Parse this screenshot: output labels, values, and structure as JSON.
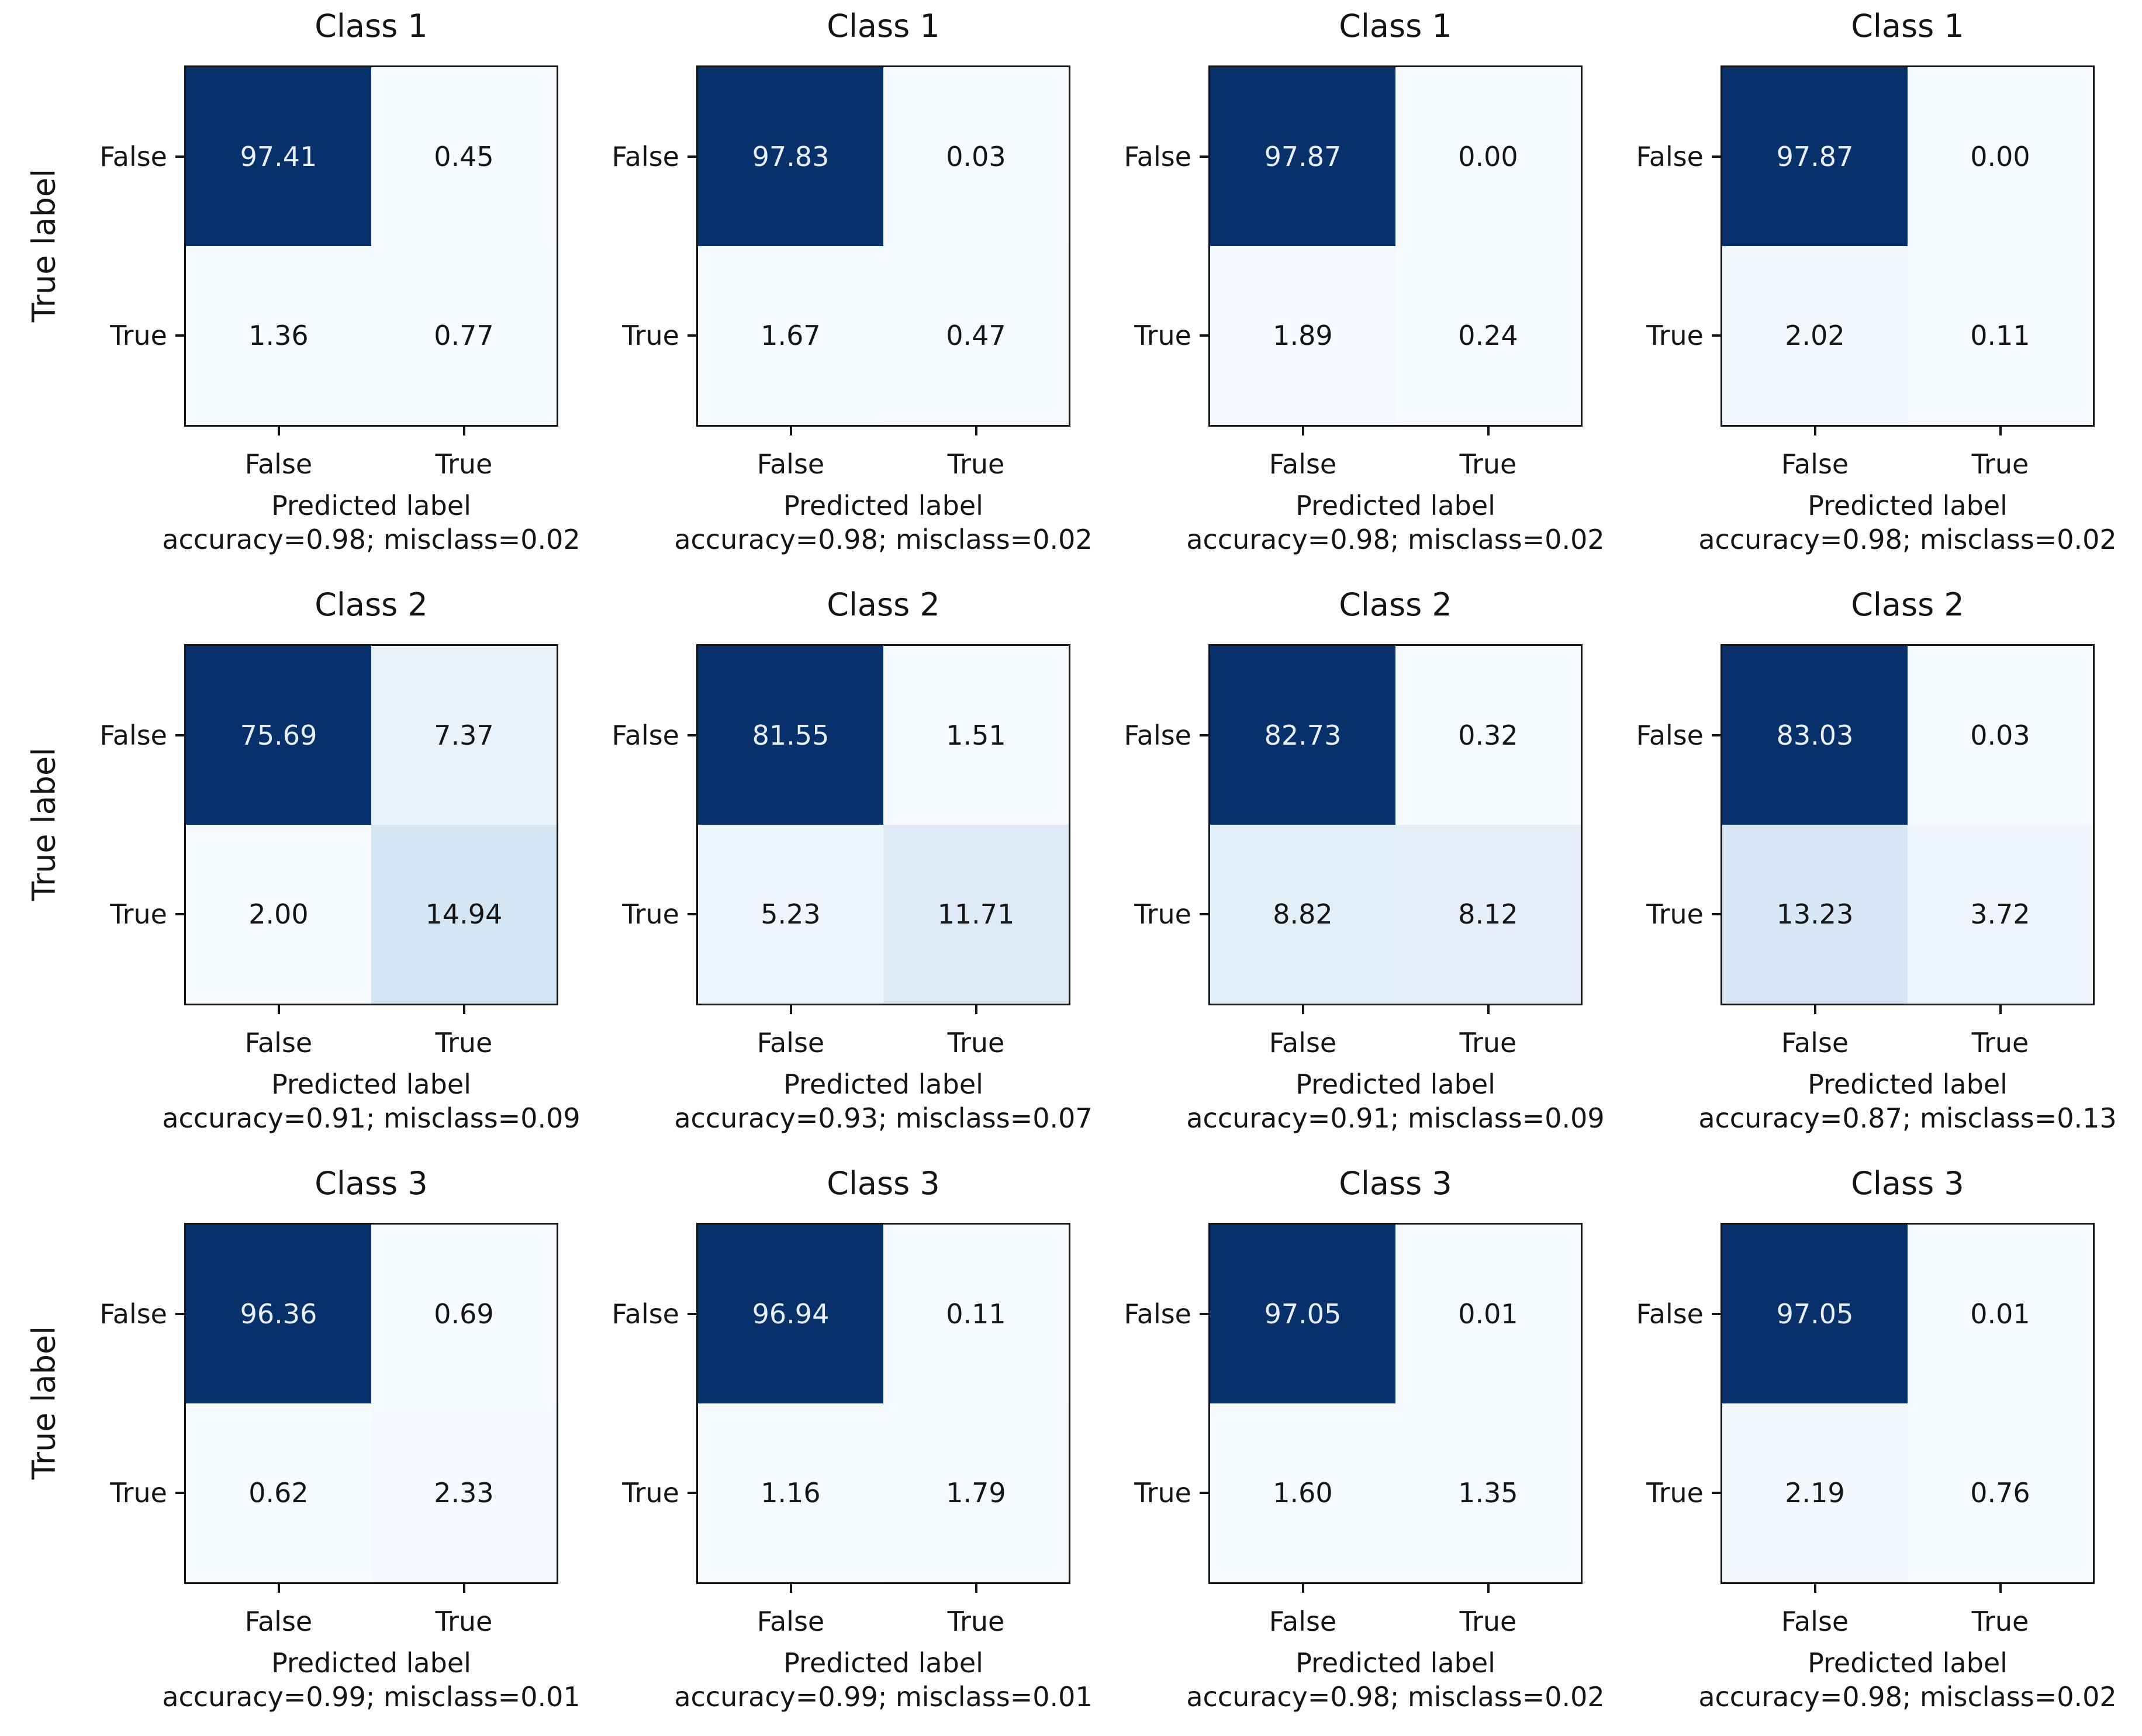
{
  "figure": {
    "xlabel": "Predicted label",
    "ylabel": "True label",
    "background": "#ffffff",
    "text_color": "#151515",
    "cell_text_light": "#e9eff8",
    "colormap": {
      "name": "Blues",
      "low": "#f7fbff",
      "high": "#08306b"
    },
    "grid_rows": 3,
    "grid_cols": 4
  },
  "chart_data": [
    {
      "type": "heatmap",
      "title": "Class 1",
      "x_categories": [
        "False",
        "True"
      ],
      "y_categories": [
        "False",
        "True"
      ],
      "values": [
        [
          97.41,
          0.45
        ],
        [
          1.36,
          0.77
        ]
      ],
      "labels": [
        [
          "97.41",
          "0.45"
        ],
        [
          "1.36",
          "0.77"
        ]
      ],
      "accuracy": 0.98,
      "misclass": 0.02,
      "footer": "accuracy=0.98; misclass=0.02"
    },
    {
      "type": "heatmap",
      "title": "Class 1",
      "x_categories": [
        "False",
        "True"
      ],
      "y_categories": [
        "False",
        "True"
      ],
      "values": [
        [
          97.83,
          0.03
        ],
        [
          1.67,
          0.47
        ]
      ],
      "labels": [
        [
          "97.83",
          "0.03"
        ],
        [
          "1.67",
          "0.47"
        ]
      ],
      "accuracy": 0.98,
      "misclass": 0.02,
      "footer": "accuracy=0.98; misclass=0.02"
    },
    {
      "type": "heatmap",
      "title": "Class 1",
      "x_categories": [
        "False",
        "True"
      ],
      "y_categories": [
        "False",
        "True"
      ],
      "values": [
        [
          97.87,
          0.0
        ],
        [
          1.89,
          0.24
        ]
      ],
      "labels": [
        [
          "97.87",
          "0.00"
        ],
        [
          "1.89",
          "0.24"
        ]
      ],
      "accuracy": 0.98,
      "misclass": 0.02,
      "footer": "accuracy=0.98; misclass=0.02"
    },
    {
      "type": "heatmap",
      "title": "Class 1",
      "x_categories": [
        "False",
        "True"
      ],
      "y_categories": [
        "False",
        "True"
      ],
      "values": [
        [
          97.87,
          0.0
        ],
        [
          2.02,
          0.11
        ]
      ],
      "labels": [
        [
          "97.87",
          "0.00"
        ],
        [
          "2.02",
          "0.11"
        ]
      ],
      "accuracy": 0.98,
      "misclass": 0.02,
      "footer": "accuracy=0.98; misclass=0.02"
    },
    {
      "type": "heatmap",
      "title": "Class 2",
      "x_categories": [
        "False",
        "True"
      ],
      "y_categories": [
        "False",
        "True"
      ],
      "values": [
        [
          75.69,
          7.37
        ],
        [
          2.0,
          14.94
        ]
      ],
      "labels": [
        [
          "75.69",
          "7.37"
        ],
        [
          "2.00",
          "14.94"
        ]
      ],
      "accuracy": 0.91,
      "misclass": 0.09,
      "footer": "accuracy=0.91; misclass=0.09"
    },
    {
      "type": "heatmap",
      "title": "Class 2",
      "x_categories": [
        "False",
        "True"
      ],
      "y_categories": [
        "False",
        "True"
      ],
      "values": [
        [
          81.55,
          1.51
        ],
        [
          5.23,
          11.71
        ]
      ],
      "labels": [
        [
          "81.55",
          "1.51"
        ],
        [
          "5.23",
          "11.71"
        ]
      ],
      "accuracy": 0.93,
      "misclass": 0.07,
      "footer": "accuracy=0.93; misclass=0.07"
    },
    {
      "type": "heatmap",
      "title": "Class 2",
      "x_categories": [
        "False",
        "True"
      ],
      "y_categories": [
        "False",
        "True"
      ],
      "values": [
        [
          82.73,
          0.32
        ],
        [
          8.82,
          8.12
        ]
      ],
      "labels": [
        [
          "82.73",
          "0.32"
        ],
        [
          "8.82",
          "8.12"
        ]
      ],
      "accuracy": 0.91,
      "misclass": 0.09,
      "footer": "accuracy=0.91; misclass=0.09"
    },
    {
      "type": "heatmap",
      "title": "Class 2",
      "x_categories": [
        "False",
        "True"
      ],
      "y_categories": [
        "False",
        "True"
      ],
      "values": [
        [
          83.03,
          0.03
        ],
        [
          13.23,
          3.72
        ]
      ],
      "labels": [
        [
          "83.03",
          "0.03"
        ],
        [
          "13.23",
          "3.72"
        ]
      ],
      "accuracy": 0.87,
      "misclass": 0.13,
      "footer": "accuracy=0.87; misclass=0.13"
    },
    {
      "type": "heatmap",
      "title": "Class 3",
      "x_categories": [
        "False",
        "True"
      ],
      "y_categories": [
        "False",
        "True"
      ],
      "values": [
        [
          96.36,
          0.69
        ],
        [
          0.62,
          2.33
        ]
      ],
      "labels": [
        [
          "96.36",
          "0.69"
        ],
        [
          "0.62",
          "2.33"
        ]
      ],
      "accuracy": 0.99,
      "misclass": 0.01,
      "footer": "accuracy=0.99; misclass=0.01"
    },
    {
      "type": "heatmap",
      "title": "Class 3",
      "x_categories": [
        "False",
        "True"
      ],
      "y_categories": [
        "False",
        "True"
      ],
      "values": [
        [
          96.94,
          0.11
        ],
        [
          1.16,
          1.79
        ]
      ],
      "labels": [
        [
          "96.94",
          "0.11"
        ],
        [
          "1.16",
          "1.79"
        ]
      ],
      "accuracy": 0.99,
      "misclass": 0.01,
      "footer": "accuracy=0.99; misclass=0.01"
    },
    {
      "type": "heatmap",
      "title": "Class 3",
      "x_categories": [
        "False",
        "True"
      ],
      "y_categories": [
        "False",
        "True"
      ],
      "values": [
        [
          97.05,
          0.01
        ],
        [
          1.6,
          1.35
        ]
      ],
      "labels": [
        [
          "97.05",
          "0.01"
        ],
        [
          "1.60",
          "1.35"
        ]
      ],
      "accuracy": 0.98,
      "misclass": 0.02,
      "footer": "accuracy=0.98; misclass=0.02"
    },
    {
      "type": "heatmap",
      "title": "Class 3",
      "x_categories": [
        "False",
        "True"
      ],
      "y_categories": [
        "False",
        "True"
      ],
      "values": [
        [
          97.05,
          0.01
        ],
        [
          2.19,
          0.76
        ]
      ],
      "labels": [
        [
          "97.05",
          "0.01"
        ],
        [
          "2.19",
          "0.76"
        ]
      ],
      "accuracy": 0.98,
      "misclass": 0.02,
      "footer": "accuracy=0.98; misclass=0.02"
    }
  ]
}
